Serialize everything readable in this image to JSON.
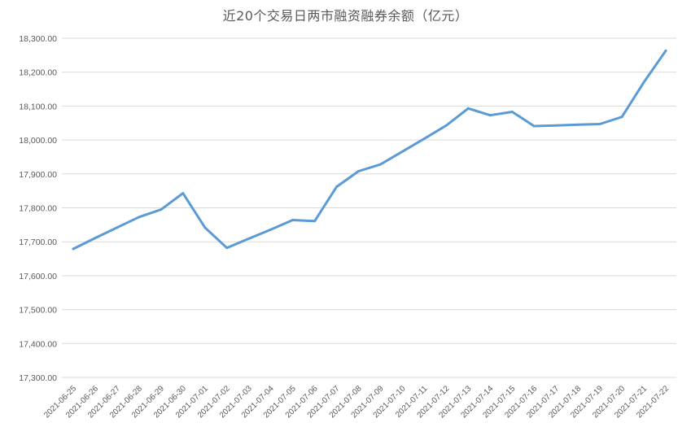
{
  "chart_data": {
    "type": "line",
    "title": "近20个交易日两市融资融券余额（亿元）",
    "xlabel": "",
    "ylabel": "",
    "ylim": [
      17300,
      18300
    ],
    "y_ticks": [
      "17,300.00",
      "17,400.00",
      "17,500.00",
      "17,600.00",
      "17,700.00",
      "17,800.00",
      "17,900.00",
      "18,000.00",
      "18,100.00",
      "18,200.00",
      "18,300.00"
    ],
    "grid": true,
    "legend": "none",
    "line_color": "#5b9bd5",
    "categories": [
      "2021-06-25",
      "2021-06-26",
      "2021-06-27",
      "2021-06-28",
      "2021-06-29",
      "2021-06-30",
      "2021-07-01",
      "2021-07-02",
      "2021-07-03",
      "2021-07-04",
      "2021-07-05",
      "2021-07-06",
      "2021-07-07",
      "2021-07-08",
      "2021-07-09",
      "2021-07-10",
      "2021-07-11",
      "2021-07-12",
      "2021-07-13",
      "2021-07-14",
      "2021-07-15",
      "2021-07-16",
      "2021-07-17",
      "2021-07-18",
      "2021-07-19",
      "2021-07-20",
      "2021-07-21",
      "2021-07-22"
    ],
    "series": [
      {
        "values": [
          17679,
          17711,
          17742,
          17773,
          17795,
          17843,
          17742,
          17682,
          17709,
          17736,
          17764,
          17761,
          17862,
          17908,
          17928,
          17966,
          18004,
          18043,
          18093,
          18073,
          18083,
          18041,
          18043,
          18045,
          18047,
          18068,
          18170,
          18263
        ]
      }
    ]
  }
}
